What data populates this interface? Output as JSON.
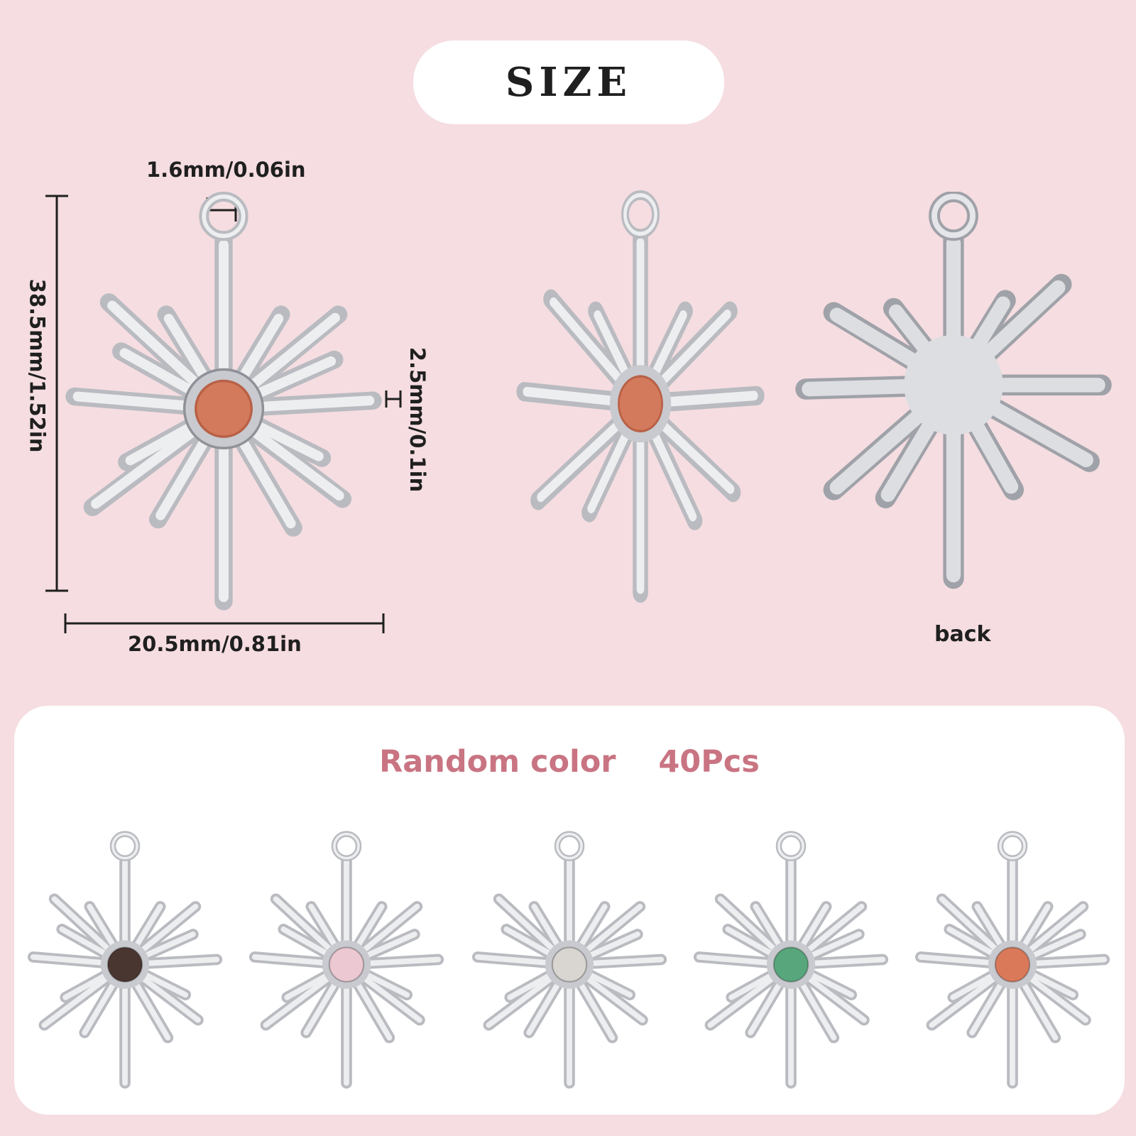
{
  "header": {
    "title": "SIZE"
  },
  "dimensions": {
    "loop_width": "1.6mm/0.06in",
    "height": "38.5mm/1.52in",
    "thickness": "2.5mm/0.1in",
    "width": "20.5mm/0.81in"
  },
  "views": {
    "back_label": "back"
  },
  "colors_panel": {
    "title": "Random color    40Pcs",
    "stones": [
      {
        "color": "#4a3630"
      },
      {
        "color": "#ecc9d2"
      },
      {
        "color": "#d9d6d2"
      },
      {
        "color": "#58a67c"
      },
      {
        "color": "#d9795a"
      }
    ]
  },
  "palette": {
    "background": "#f5dde1",
    "title_accent": "#c97482",
    "default_stone": "#d47a5c",
    "metal": "#c9cbcf"
  }
}
